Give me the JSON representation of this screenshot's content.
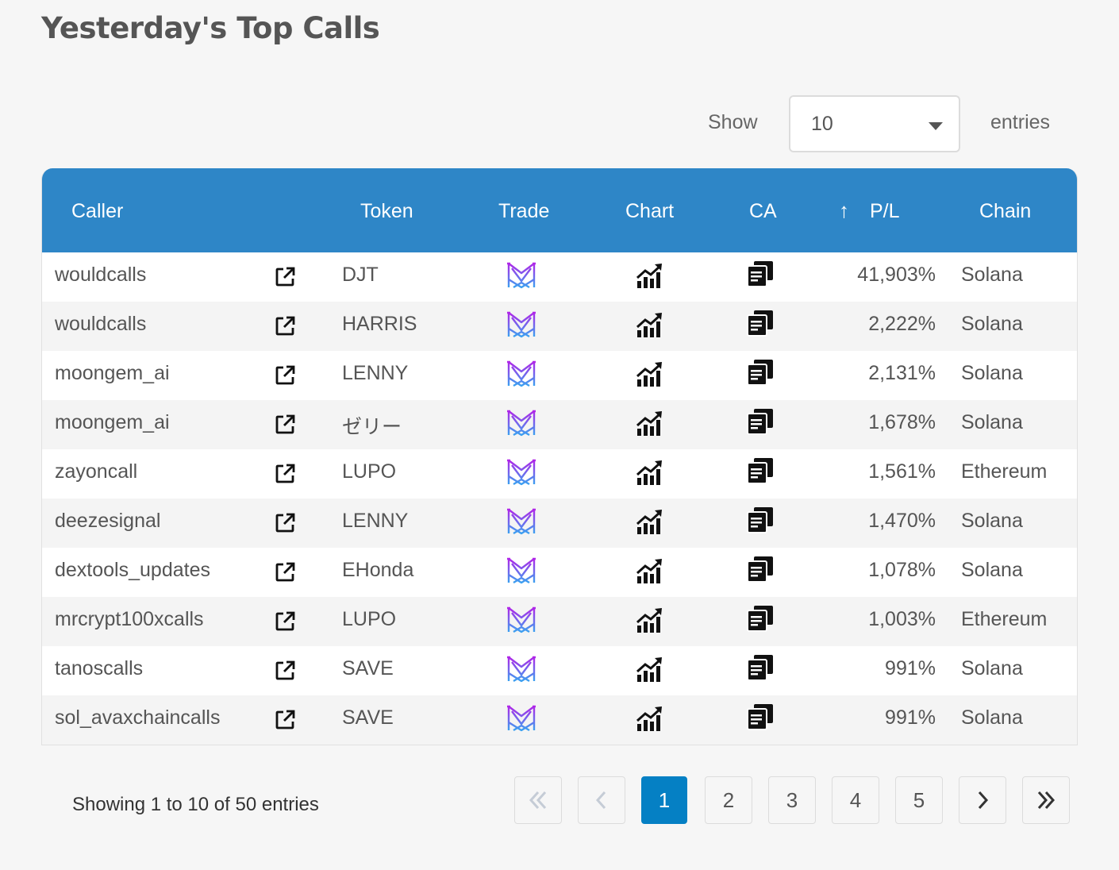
{
  "page": {
    "title": "Yesterday's Top Calls"
  },
  "length": {
    "show_label": "Show",
    "selected": "10",
    "entries_label": "entries"
  },
  "table": {
    "headers": {
      "caller": "Caller",
      "token": "Token",
      "trade": "Trade",
      "chart": "Chart",
      "ca": "CA",
      "pl": "P/L",
      "chain": "Chain"
    },
    "sort_icon": "arrow-up-icon",
    "row_icons": {
      "link": "external-link-icon",
      "trade": "trade-logo-icon",
      "chart": "chart-growth-icon",
      "ca": "copy-icon"
    },
    "rows": [
      {
        "caller": "wouldcalls",
        "token": "DJT",
        "pl": "41,903%",
        "chain": "Solana"
      },
      {
        "caller": "wouldcalls",
        "token": "HARRIS",
        "pl": "2,222%",
        "chain": "Solana"
      },
      {
        "caller": "moongem_ai",
        "token": "LENNY",
        "pl": "2,131%",
        "chain": "Solana"
      },
      {
        "caller": "moongem_ai",
        "token": "ゼリー",
        "pl": "1,678%",
        "chain": "Solana"
      },
      {
        "caller": "zayoncall",
        "token": "LUPO",
        "pl": "1,561%",
        "chain": "Ethereum"
      },
      {
        "caller": "deezesignal",
        "token": "LENNY",
        "pl": "1,470%",
        "chain": "Solana"
      },
      {
        "caller": "dextools_updates",
        "token": "EHonda",
        "pl": "1,078%",
        "chain": "Solana"
      },
      {
        "caller": "mrcrypt100xcalls",
        "token": "LUPO",
        "pl": "1,003%",
        "chain": "Ethereum"
      },
      {
        "caller": "tanoscalls",
        "token": "SAVE",
        "pl": "991%",
        "chain": "Solana"
      },
      {
        "caller": "sol_avaxchaincalls",
        "token": "SAVE",
        "pl": "991%",
        "chain": "Solana"
      }
    ]
  },
  "footer": {
    "info": "Showing 1 to 10 of 50 entries",
    "pages": [
      "1",
      "2",
      "3",
      "4",
      "5"
    ],
    "current_page": "1",
    "nav_icons": [
      "first-page-icon",
      "previous-page-icon",
      "next-page-icon",
      "last-page-icon"
    ]
  },
  "colors": {
    "header_bg": "#2e86c7",
    "active_page": "#0580c4",
    "trade_logo_top": "#9b3fe0",
    "trade_logo_bottom": "#3aa0f0"
  }
}
